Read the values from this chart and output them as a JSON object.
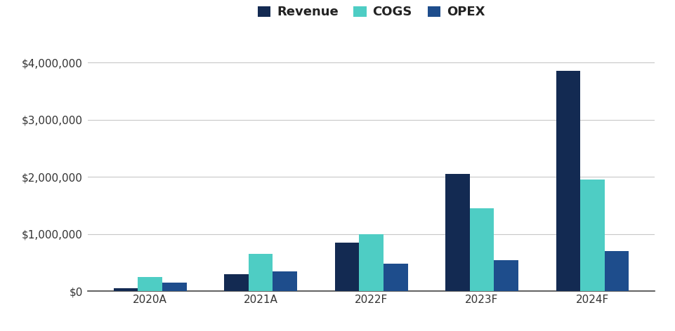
{
  "categories": [
    "2020A",
    "2021A",
    "2022F",
    "2023F",
    "2024F"
  ],
  "revenue": [
    50000,
    300000,
    850000,
    2050000,
    3850000
  ],
  "cogs": [
    250000,
    650000,
    1000000,
    1450000,
    1950000
  ],
  "opex": [
    150000,
    350000,
    480000,
    540000,
    700000
  ],
  "revenue_color": "#132a52",
  "cogs_color": "#4ecdc4",
  "opex_color": "#1e4d8c",
  "legend_labels": [
    "Revenue",
    "COGS",
    "OPEX"
  ],
  "ylim": [
    0,
    4400000
  ],
  "yticks": [
    0,
    1000000,
    2000000,
    3000000,
    4000000
  ],
  "background_color": "#ffffff",
  "grid_color": "#c8c8c8",
  "bar_width": 0.22,
  "legend_fontsize": 13,
  "tick_fontsize": 11,
  "tick_color": "#333333",
  "axis_label_color": "#333333"
}
